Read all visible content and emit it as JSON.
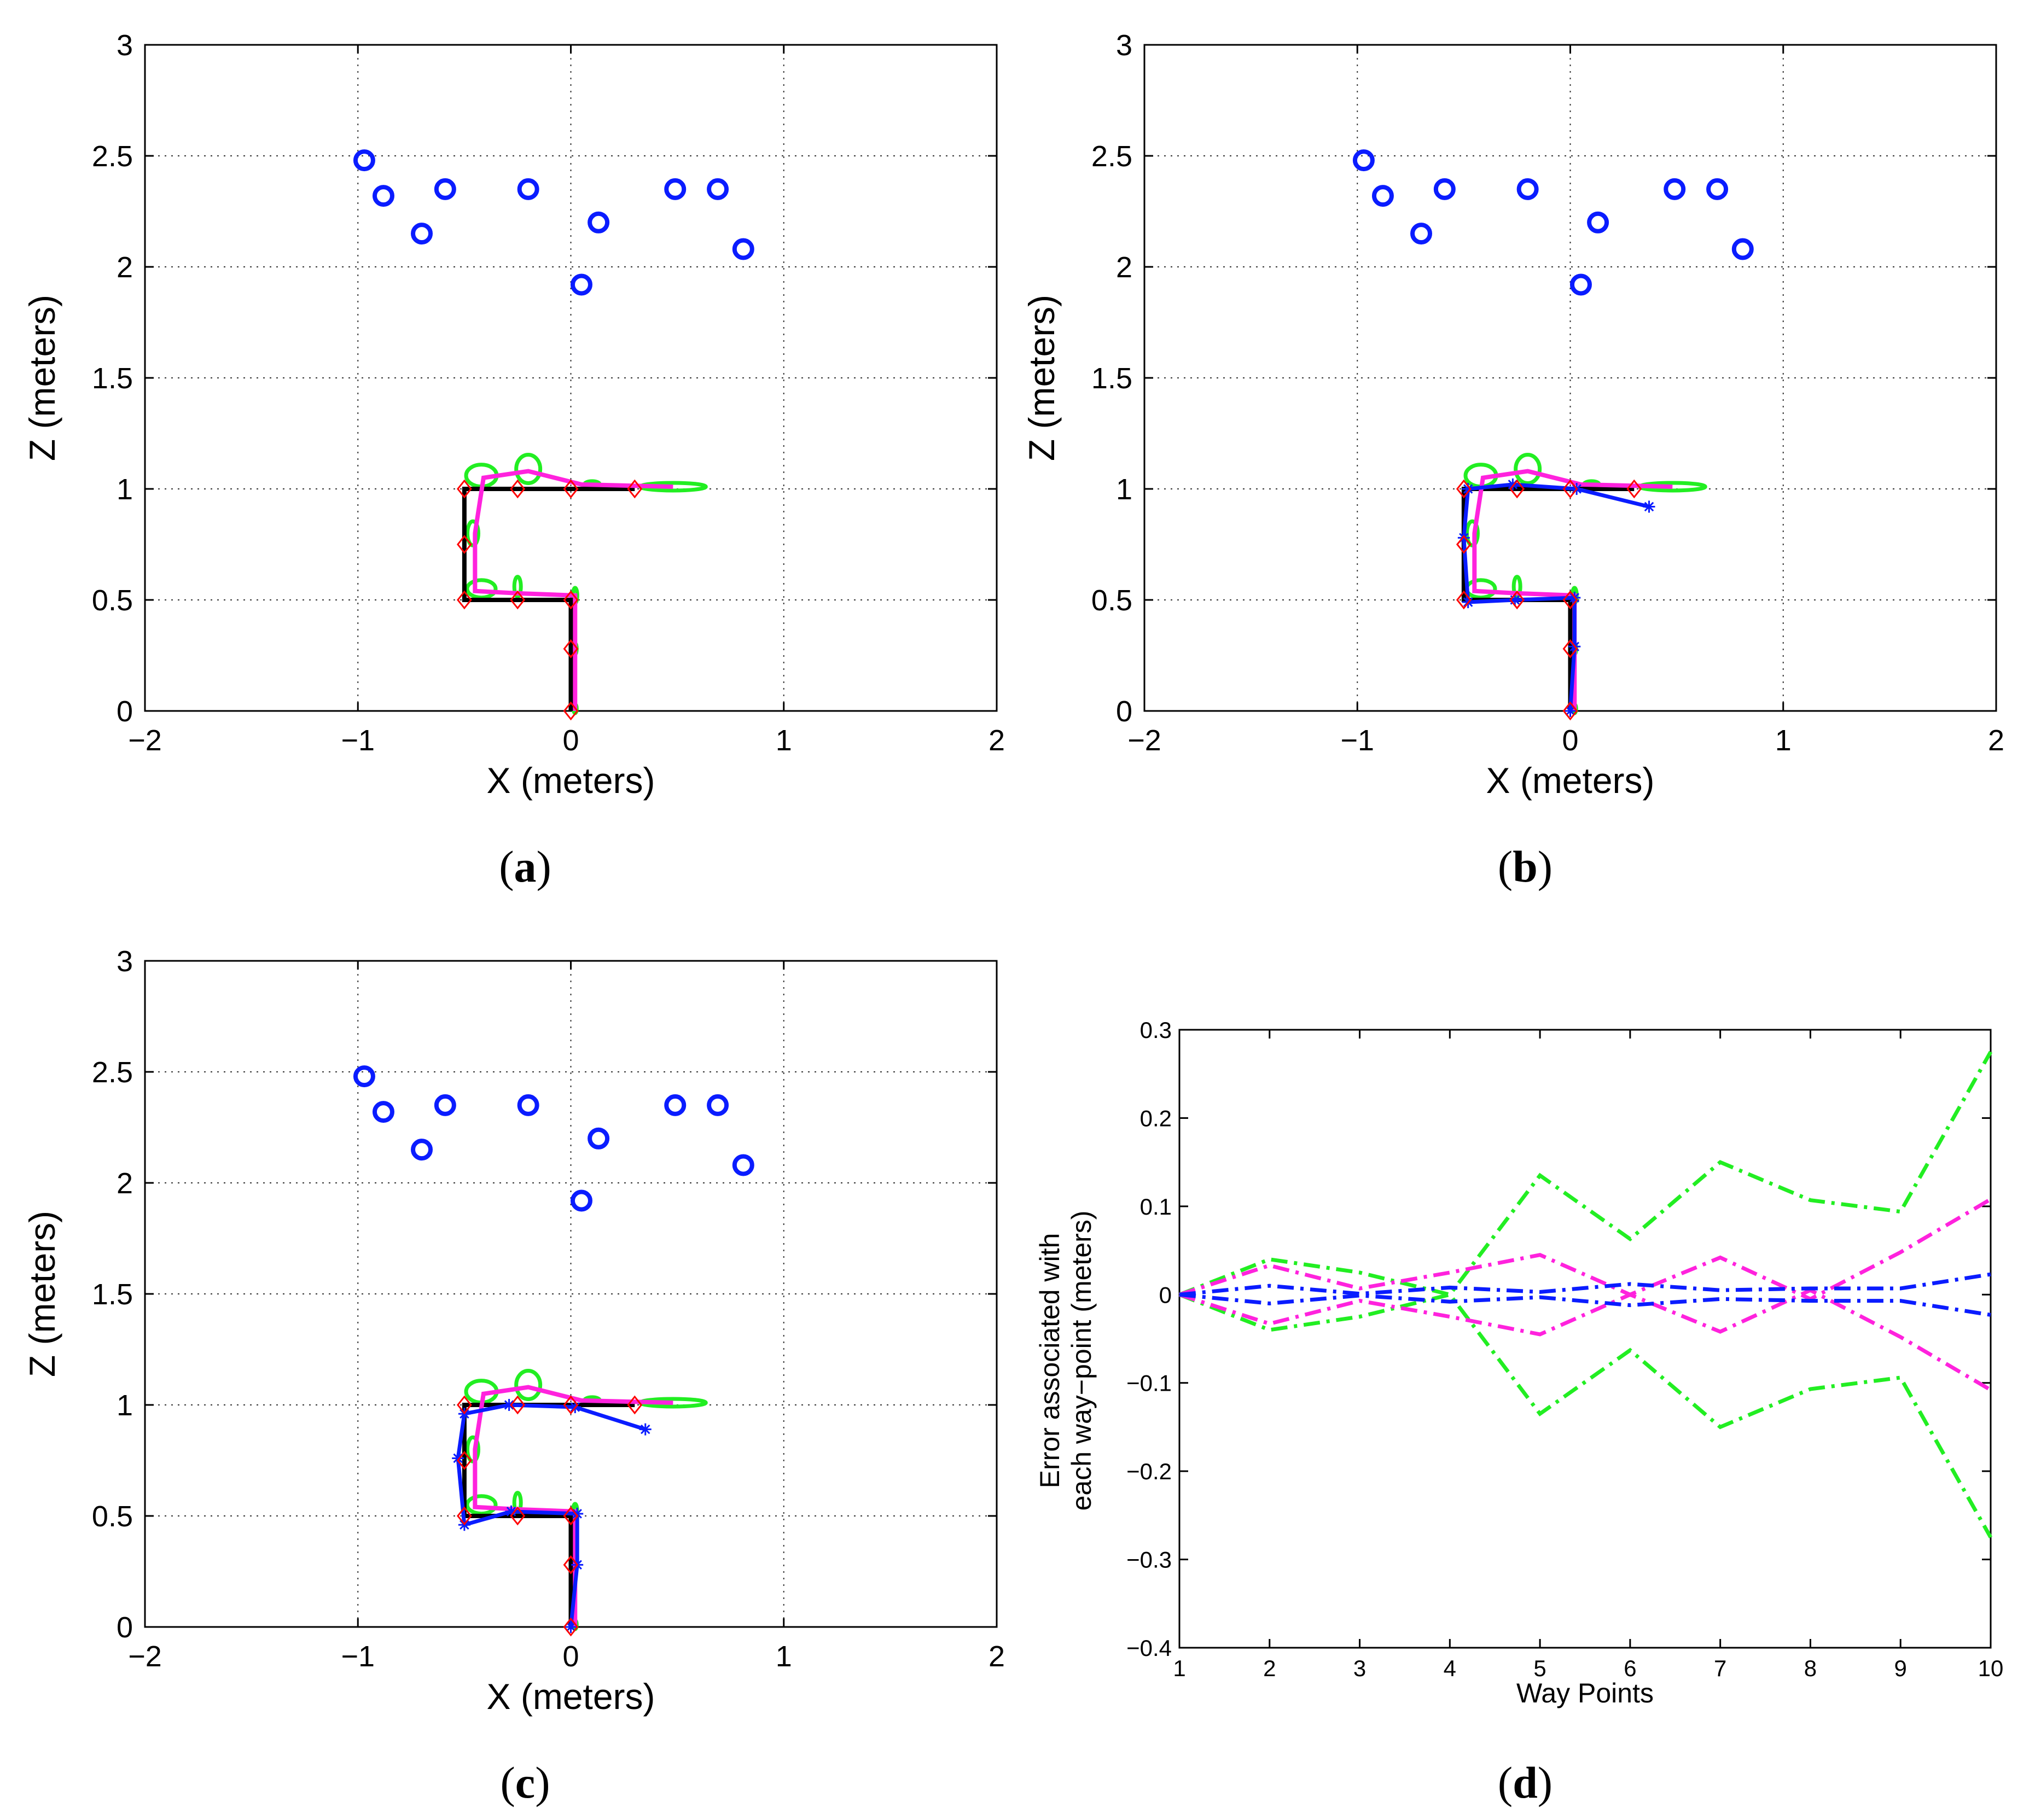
{
  "chart_data": [
    {
      "type": "scatter",
      "panel": "a",
      "caption_letter": "a",
      "xlabel": "X (meters)",
      "ylabel": "Z (meters)",
      "xlim": [
        -2,
        2
      ],
      "ylim": [
        0,
        3
      ],
      "xticks": [
        -2,
        -1,
        0,
        1,
        2
      ],
      "xtick_labels": [
        "−2",
        "−1",
        "0",
        "1",
        "2"
      ],
      "yticks": [
        0,
        0.5,
        1,
        1.5,
        2,
        2.5,
        3
      ],
      "ytick_labels": [
        "0",
        "0.5",
        "1",
        "1.5",
        "2",
        "2.5",
        "3"
      ],
      "grid": true,
      "landmarks": {
        "color": "#0a1cff",
        "marker": "circle",
        "x": [
          -0.97,
          -0.88,
          -0.7,
          -0.59,
          -0.2,
          0.05,
          0.13,
          0.49,
          0.69,
          0.81
        ],
        "y": [
          2.48,
          2.32,
          2.15,
          2.35,
          2.35,
          1.92,
          2.2,
          2.35,
          2.35,
          2.08
        ]
      },
      "true_path": {
        "color": "#000000",
        "x": [
          0,
          0,
          0,
          -0.25,
          -0.5,
          -0.5,
          -0.5,
          -0.25,
          0,
          0.3
        ],
        "y": [
          0,
          0.28,
          0.5,
          0.5,
          0.5,
          0.75,
          1,
          1,
          1,
          1
        ]
      },
      "waypoints": {
        "color": "#ff0000",
        "marker": "diamond",
        "x": [
          0,
          0,
          0,
          -0.25,
          -0.5,
          -0.5,
          -0.5,
          -0.25,
          0,
          0.3
        ],
        "y": [
          0,
          0.28,
          0.5,
          0.5,
          0.5,
          0.75,
          1,
          1,
          1,
          1
        ]
      },
      "estimated_path": {
        "color": "#ff22dd",
        "x": [
          0.02,
          0.02,
          0.02,
          -0.25,
          -0.45,
          -0.45,
          -0.41,
          -0.2,
          0.05,
          0.48
        ],
        "y": [
          0,
          0.28,
          0.52,
          0.53,
          0.54,
          0.8,
          1.05,
          1.08,
          1.02,
          1.01
        ]
      },
      "uncertainty_ellipses": {
        "color": "#22ee22",
        "marker": "ellipse",
        "x": [
          0.02,
          0.02,
          0.02,
          -0.25,
          -0.42,
          -0.46,
          -0.42,
          -0.2,
          0.1,
          0.48
        ],
        "y": [
          0.01,
          0.28,
          0.52,
          0.56,
          0.55,
          0.8,
          1.06,
          1.09,
          1.02,
          1.01
        ]
      },
      "robot_path": null
    },
    {
      "type": "scatter",
      "panel": "b",
      "caption_letter": "b",
      "xlabel": "X (meters)",
      "ylabel": "Z (meters)",
      "xlim": [
        -2,
        2
      ],
      "ylim": [
        0,
        3
      ],
      "xticks": [
        -2,
        -1,
        0,
        1,
        2
      ],
      "xtick_labels": [
        "−2",
        "−1",
        "0",
        "1",
        "2"
      ],
      "yticks": [
        0,
        0.5,
        1,
        1.5,
        2,
        2.5,
        3
      ],
      "ytick_labels": [
        "0",
        "0.5",
        "1",
        "1.5",
        "2",
        "2.5",
        "3"
      ],
      "grid": true,
      "landmarks": {
        "color": "#0a1cff",
        "marker": "circle",
        "x": [
          -0.97,
          -0.88,
          -0.7,
          -0.59,
          -0.2,
          0.05,
          0.13,
          0.49,
          0.69,
          0.81
        ],
        "y": [
          2.48,
          2.32,
          2.15,
          2.35,
          2.35,
          1.92,
          2.2,
          2.35,
          2.35,
          2.08
        ]
      },
      "true_path": {
        "color": "#000000",
        "x": [
          0,
          0,
          0,
          -0.25,
          -0.5,
          -0.5,
          -0.5,
          -0.25,
          0,
          0.3
        ],
        "y": [
          0,
          0.28,
          0.5,
          0.5,
          0.5,
          0.75,
          1,
          1,
          1,
          1
        ]
      },
      "waypoints": {
        "color": "#ff0000",
        "marker": "diamond",
        "x": [
          0,
          0,
          0,
          -0.25,
          -0.5,
          -0.5,
          -0.5,
          -0.25,
          0,
          0.3
        ],
        "y": [
          0,
          0.28,
          0.5,
          0.5,
          0.5,
          0.75,
          1,
          1,
          1,
          1
        ]
      },
      "estimated_path": {
        "color": "#ff22dd",
        "x": [
          0.02,
          0.02,
          0.02,
          -0.25,
          -0.45,
          -0.45,
          -0.41,
          -0.2,
          0.05,
          0.48
        ],
        "y": [
          0,
          0.28,
          0.52,
          0.53,
          0.54,
          0.8,
          1.05,
          1.08,
          1.02,
          1.01
        ]
      },
      "uncertainty_ellipses": {
        "color": "#22ee22",
        "marker": "ellipse",
        "x": [
          0.02,
          0.02,
          0.02,
          -0.25,
          -0.42,
          -0.46,
          -0.42,
          -0.2,
          0.1,
          0.48
        ],
        "y": [
          0.01,
          0.28,
          0.52,
          0.56,
          0.55,
          0.8,
          1.06,
          1.09,
          1.02,
          1.01
        ]
      },
      "robot_path": {
        "color": "#0a1cff",
        "marker": "star",
        "x": [
          0,
          0.02,
          0.02,
          -0.26,
          -0.48,
          -0.5,
          -0.48,
          -0.27,
          0.03,
          0.37
        ],
        "y": [
          0,
          0.29,
          0.51,
          0.5,
          0.49,
          0.78,
          1.0,
          1.02,
          1.0,
          0.92
        ]
      }
    },
    {
      "type": "scatter",
      "panel": "c",
      "caption_letter": "c",
      "xlabel": "X (meters)",
      "ylabel": "Z (meters)",
      "xlim": [
        -2,
        2
      ],
      "ylim": [
        0,
        3
      ],
      "xticks": [
        -2,
        -1,
        0,
        1,
        2
      ],
      "xtick_labels": [
        "−2",
        "−1",
        "0",
        "1",
        "2"
      ],
      "yticks": [
        0,
        0.5,
        1,
        1.5,
        2,
        2.5,
        3
      ],
      "ytick_labels": [
        "0",
        "0.5",
        "1",
        "1.5",
        "2",
        "2.5",
        "3"
      ],
      "grid": true,
      "landmarks": {
        "color": "#0a1cff",
        "marker": "circle",
        "x": [
          -0.97,
          -0.88,
          -0.7,
          -0.59,
          -0.2,
          0.05,
          0.13,
          0.49,
          0.69,
          0.81
        ],
        "y": [
          2.48,
          2.32,
          2.15,
          2.35,
          2.35,
          1.92,
          2.2,
          2.35,
          2.35,
          2.08
        ]
      },
      "true_path": {
        "color": "#000000",
        "x": [
          0,
          0,
          0,
          -0.25,
          -0.5,
          -0.5,
          -0.5,
          -0.25,
          0,
          0.3
        ],
        "y": [
          0,
          0.28,
          0.5,
          0.5,
          0.5,
          0.75,
          1,
          1,
          1,
          1
        ]
      },
      "waypoints": {
        "color": "#ff0000",
        "marker": "diamond",
        "x": [
          0,
          0,
          0,
          -0.25,
          -0.5,
          -0.5,
          -0.5,
          -0.25,
          0,
          0.3
        ],
        "y": [
          0,
          0.28,
          0.5,
          0.5,
          0.5,
          0.75,
          1,
          1,
          1,
          1
        ]
      },
      "estimated_path": {
        "color": "#ff22dd",
        "x": [
          0.02,
          0.02,
          0.02,
          -0.25,
          -0.45,
          -0.45,
          -0.41,
          -0.2,
          0.05,
          0.48
        ],
        "y": [
          0,
          0.28,
          0.52,
          0.53,
          0.54,
          0.8,
          1.05,
          1.08,
          1.02,
          1.01
        ]
      },
      "uncertainty_ellipses": {
        "color": "#22ee22",
        "marker": "ellipse",
        "x": [
          0.02,
          0.02,
          0.02,
          -0.25,
          -0.42,
          -0.46,
          -0.42,
          -0.2,
          0.1,
          0.48
        ],
        "y": [
          0.01,
          0.28,
          0.52,
          0.56,
          0.55,
          0.8,
          1.06,
          1.09,
          1.02,
          1.01
        ]
      },
      "robot_path": {
        "color": "#0a1cff",
        "marker": "star",
        "x": [
          0,
          0.03,
          0.03,
          -0.28,
          -0.5,
          -0.53,
          -0.5,
          -0.29,
          0.02,
          0.35
        ],
        "y": [
          0,
          0.28,
          0.51,
          0.52,
          0.46,
          0.76,
          0.96,
          1.0,
          0.99,
          0.89
        ]
      }
    },
    {
      "type": "line",
      "panel": "d",
      "caption_letter": "d",
      "xlabel": "Way Points",
      "ylabel_lines": [
        "Error associated with",
        "each way−point (meters)"
      ],
      "xlim": [
        1,
        10
      ],
      "ylim": [
        -0.4,
        0.3
      ],
      "xticks": [
        1,
        2,
        3,
        4,
        5,
        6,
        7,
        8,
        9,
        10
      ],
      "xtick_labels": [
        "1",
        "2",
        "3",
        "4",
        "5",
        "6",
        "7",
        "8",
        "9",
        "10"
      ],
      "yticks": [
        -0.4,
        -0.3,
        -0.2,
        -0.1,
        0,
        0.1,
        0.2,
        0.3
      ],
      "ytick_labels": [
        "−0.4",
        "−0.3",
        "−0.2",
        "−0.1",
        "0",
        "0.1",
        "0.2",
        "0.3"
      ],
      "grid": false,
      "x": [
        1,
        2,
        3,
        4,
        5,
        6,
        7,
        8,
        9,
        10
      ],
      "series": [
        {
          "name": "green upper",
          "color": "#22ee22",
          "values": [
            0,
            0.04,
            0.025,
            0,
            0.135,
            0.063,
            0.15,
            0.107,
            0.094,
            0.275
          ]
        },
        {
          "name": "green lower",
          "color": "#22ee22",
          "values": [
            0,
            -0.04,
            -0.025,
            0,
            -0.135,
            -0.063,
            -0.15,
            -0.107,
            -0.094,
            -0.275
          ]
        },
        {
          "name": "magenta upper",
          "color": "#ff22dd",
          "values": [
            0,
            0.033,
            0.007,
            0.025,
            0.045,
            0,
            0.042,
            -0.005,
            0.048,
            0.108
          ]
        },
        {
          "name": "magenta lower",
          "color": "#ff22dd",
          "values": [
            0,
            -0.033,
            -0.007,
            -0.025,
            -0.045,
            0,
            -0.042,
            0.005,
            -0.048,
            -0.108
          ]
        },
        {
          "name": "blue upper",
          "color": "#0a1cff",
          "values": [
            0,
            0.01,
            0.001,
            0.008,
            0.003,
            0.012,
            0.005,
            0.007,
            0.007,
            0.023
          ]
        },
        {
          "name": "blue lower",
          "color": "#0a1cff",
          "values": [
            0,
            -0.01,
            -0.001,
            -0.008,
            -0.003,
            -0.012,
            -0.005,
            -0.007,
            -0.007,
            -0.023
          ]
        }
      ]
    }
  ]
}
